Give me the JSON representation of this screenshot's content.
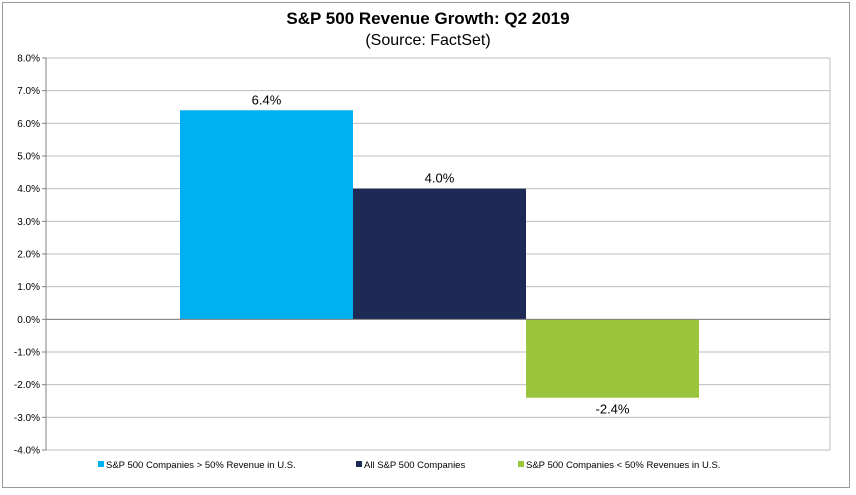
{
  "chart_data": {
    "type": "bar",
    "title": "S&P 500 Revenue Growth: Q2 2019",
    "subtitle": "(Source: FactSet)",
    "xlabel": "",
    "ylabel": "",
    "ylim": [
      -4.0,
      8.0
    ],
    "ytick_step": 1.0,
    "ytick_labels": [
      "8.0%",
      "7.0%",
      "6.0%",
      "5.0%",
      "4.0%",
      "3.0%",
      "2.0%",
      "1.0%",
      "0.0%",
      "-1.0%",
      "-2.0%",
      "-3.0%",
      "-4.0%"
    ],
    "grid": true,
    "legend_position": "bottom",
    "series": [
      {
        "name": "S&P 500 Companies > 50% Revenue in U.S.",
        "value": 6.4,
        "label": "6.4%",
        "color": "#00b0f0"
      },
      {
        "name": "All S&P 500 Companies",
        "value": 4.0,
        "label": "4.0%",
        "color": "#1c2a55"
      },
      {
        "name": "S&P 500 Companies < 50% Revenues in U.S.",
        "value": -2.4,
        "label": "-2.4%",
        "color": "#9bc53d"
      }
    ]
  }
}
